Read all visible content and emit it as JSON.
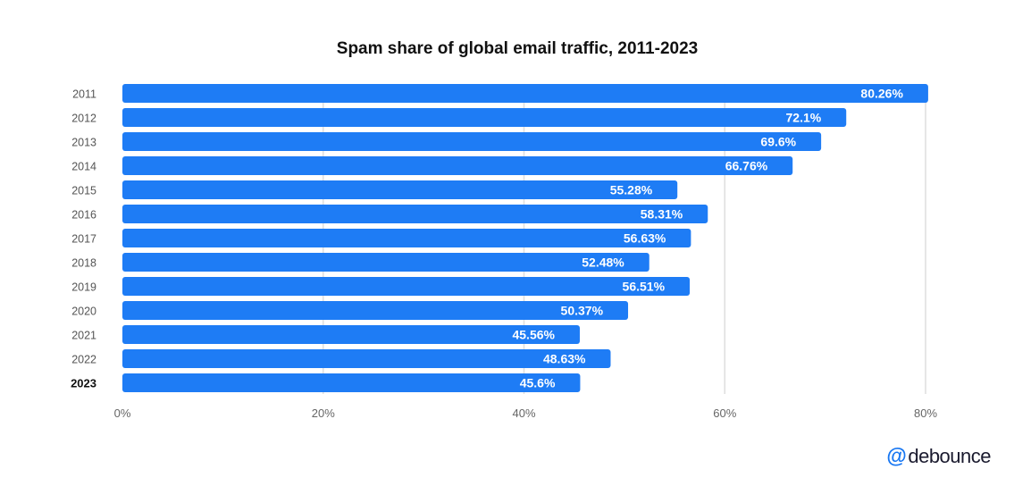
{
  "title": "Spam share of global email traffic, 2011-2023",
  "brand": {
    "at": "@",
    "name": "debounce"
  },
  "colors": {
    "bar": "#1e7cf5",
    "grid": "#dedede"
  },
  "chart_data": {
    "type": "bar",
    "orientation": "horizontal",
    "title": "Spam share of global email traffic, 2011-2023",
    "categories": [
      "2011",
      "2012",
      "2013",
      "2014",
      "2015",
      "2016",
      "2017",
      "2018",
      "2019",
      "2020",
      "2021",
      "2022",
      "2023"
    ],
    "values": [
      80.26,
      72.1,
      69.6,
      66.76,
      55.28,
      58.31,
      56.63,
      52.48,
      56.51,
      50.37,
      45.56,
      48.63,
      45.6
    ],
    "data_labels": [
      "80.26%",
      "72.1%",
      "69.6%",
      "66.76%",
      "55.28%",
      "58.31%",
      "56.63%",
      "52.48%",
      "56.51%",
      "50.37%",
      "45.56%",
      "48.63%",
      "45.6%"
    ],
    "highlight_category": "2023",
    "x_ticks": [
      0,
      20,
      40,
      60,
      80
    ],
    "x_tick_labels": [
      "0%",
      "20%",
      "40%",
      "60%",
      "80%"
    ],
    "xlim": [
      0,
      80
    ],
    "grid": "vertical",
    "legend": "none"
  }
}
